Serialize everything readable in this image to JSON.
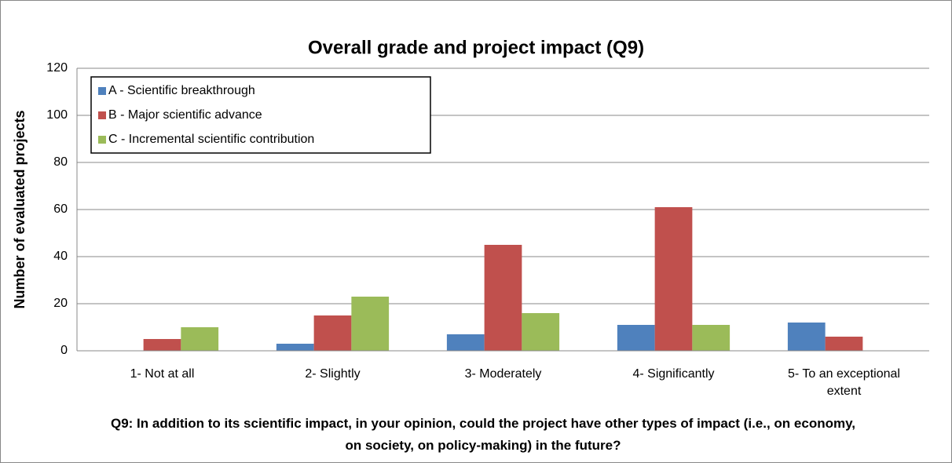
{
  "chart_data": {
    "type": "bar",
    "title": "Overall grade and project impact (Q9)",
    "y_label": "Number of evaluated projects",
    "x_label": "Q9: In addition to its scientific impact, in your opinion, could the project have other types of impact (i.e., on economy, on society, on policy-making) in the future?",
    "categories": [
      "1- Not at all",
      "2- Slightly",
      "3- Moderately",
      "4- Significantly",
      "5- To an exceptional extent"
    ],
    "series": [
      {
        "name": "A - Scientific breakthrough",
        "color": "#4f81bd",
        "values": [
          0,
          3,
          7,
          11,
          12
        ]
      },
      {
        "name": "B - Major scientific advance",
        "color": "#c0504d",
        "values": [
          5,
          15,
          45,
          61,
          6
        ]
      },
      {
        "name": "C - Incremental scientific contribution",
        "color": "#9bbb59",
        "values": [
          10,
          23,
          16,
          11,
          0
        ]
      }
    ],
    "ylim": [
      0,
      120
    ],
    "yticks": [
      0,
      20,
      40,
      60,
      80,
      100,
      120
    ],
    "grid": true,
    "legend": "upper left"
  }
}
